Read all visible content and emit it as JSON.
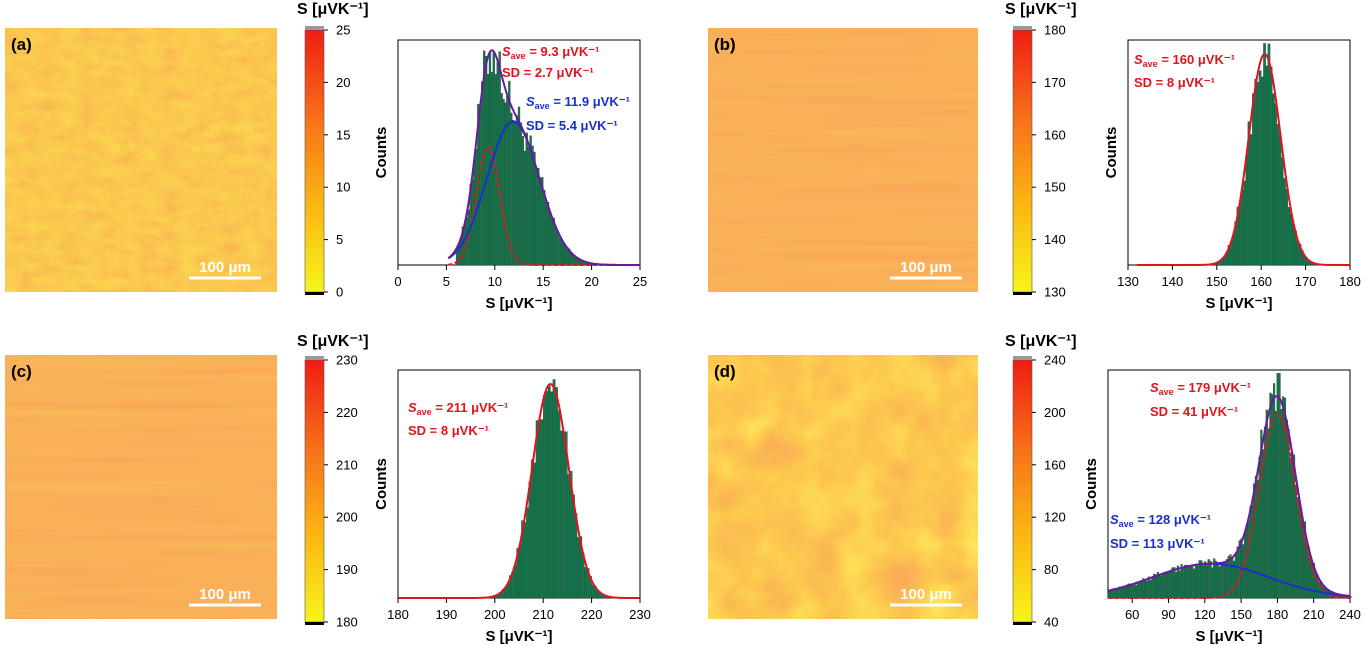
{
  "colors": {
    "red": "#e0141e",
    "blue": "#1b2fd1",
    "purple": "#6a1b9a",
    "bar": "#0f7a4c",
    "bar_edge": "#3a3a3a"
  },
  "chart_data": [
    {
      "type": "bar",
      "panel_label": "(a)",
      "colorbar": {
        "title": "S [μVK⁻¹]",
        "ticks": [
          "0",
          "5",
          "10",
          "15",
          "20",
          "25"
        ],
        "range": [
          0,
          25
        ]
      },
      "map": {
        "scale_bar": "100 μm",
        "style": "granular"
      },
      "histogram": {
        "xlim": [
          0,
          25
        ],
        "xticks": [
          "0",
          "5",
          "10",
          "15",
          "20",
          "25"
        ],
        "xlabel": "S [μVK⁻¹]",
        "ylabel": "Counts",
        "bins_from": 6,
        "bin_width": 0.2,
        "fits": [
          {
            "name": "fit1",
            "color": "red",
            "mean": 9.3,
            "sd": 2.7,
            "fit_mean": 9.3,
            "fit_sd": 1.2,
            "amp": 0.56,
            "dashed": true
          },
          {
            "name": "fit2",
            "color": "blue",
            "mean": 11.9,
            "sd": 5.4,
            "fit_mean": 11.9,
            "fit_sd": 2.7,
            "amp": 0.68,
            "dashed": false
          }
        ],
        "envelope": true,
        "annotations": [
          {
            "color": "red",
            "sym": "S",
            "sub": "ave",
            "text": " = 9.3 μVK⁻¹"
          },
          {
            "color": "red",
            "sym": "",
            "sub": "",
            "text": "SD = 2.7 μVK⁻¹"
          },
          {
            "color": "blue",
            "sym": "S",
            "sub": "ave",
            "text": " = 11.9 μVK⁻¹"
          },
          {
            "color": "blue",
            "sym": "",
            "sub": "",
            "text": "SD = 5.4 μVK⁻¹"
          }
        ]
      }
    },
    {
      "type": "bar",
      "panel_label": "(b)",
      "colorbar": {
        "title": "S [μVK⁻¹]",
        "ticks": [
          "130",
          "140",
          "150",
          "160",
          "170",
          "180"
        ],
        "range": [
          130,
          180
        ]
      },
      "map": {
        "scale_bar": "100 μm",
        "style": "streaky"
      },
      "histogram": {
        "xlim": [
          130,
          180
        ],
        "xticks": [
          "130",
          "140",
          "150",
          "160",
          "170",
          "180"
        ],
        "xlabel": "S [μVK⁻¹]",
        "ylabel": "Counts",
        "bins_from": 134,
        "bin_width": 0.5,
        "fits": [
          {
            "name": "fit1",
            "color": "red",
            "mean": 160,
            "sd": 8,
            "fit_mean": 160.8,
            "fit_sd": 3.6,
            "amp": 1.0,
            "dashed": false
          }
        ],
        "envelope": false,
        "annotations": [
          {
            "color": "red",
            "sym": "S",
            "sub": "ave",
            "text": " = 160 μVK⁻¹"
          },
          {
            "color": "red",
            "sym": "",
            "sub": "",
            "text": "SD = 8 μVK⁻¹"
          }
        ]
      }
    },
    {
      "type": "bar",
      "panel_label": "(c)",
      "colorbar": {
        "title": "S [μVK⁻¹]",
        "ticks": [
          "180",
          "190",
          "200",
          "210",
          "220",
          "230"
        ],
        "range": [
          180,
          230
        ]
      },
      "map": {
        "scale_bar": "100 μm",
        "style": "streaky"
      },
      "histogram": {
        "xlim": [
          180,
          230
        ],
        "xticks": [
          "180",
          "190",
          "200",
          "210",
          "220",
          "230"
        ],
        "xlabel": "S [μVK⁻¹]",
        "ylabel": "Counts",
        "bins_from": 180,
        "bin_width": 0.5,
        "fits": [
          {
            "name": "fit1",
            "color": "red",
            "mean": 211,
            "sd": 8,
            "fit_mean": 211.5,
            "fit_sd": 3.8,
            "amp": 1.0,
            "dashed": false
          }
        ],
        "envelope": false,
        "annotations": [
          {
            "color": "red",
            "sym": "S",
            "sub": "ave",
            "text": " = 211 μVK⁻¹"
          },
          {
            "color": "red",
            "sym": "",
            "sub": "",
            "text": "SD = 8 μVK⁻¹"
          }
        ]
      }
    },
    {
      "type": "bar",
      "panel_label": "(d)",
      "colorbar": {
        "title": "S [μVK⁻¹]",
        "ticks": [
          "40",
          "80",
          "120",
          "160",
          "200",
          "240"
        ],
        "range": [
          40,
          240
        ]
      },
      "map": {
        "scale_bar": "100 μm",
        "style": "blotchy"
      },
      "histogram": {
        "xlim": [
          40,
          240
        ],
        "xticks": [
          "60",
          "90",
          "120",
          "150",
          "180",
          "210",
          "240"
        ],
        "xlabel": "S [μVK⁻¹]",
        "ylabel": "Counts",
        "bins_from": 40,
        "bin_width": 1.5,
        "fits": [
          {
            "name": "fit1",
            "color": "red",
            "mean": 179,
            "sd": 41,
            "fit_mean": 180,
            "fit_sd": 15,
            "amp": 0.86,
            "dashed": true
          },
          {
            "name": "fit2",
            "color": "blue",
            "mean": 128,
            "sd": 113,
            "fit_mean": 125,
            "fit_sd": 48,
            "amp": 0.16,
            "dashed": false
          }
        ],
        "envelope": true,
        "annotations": [
          {
            "color": "red",
            "sym": "S",
            "sub": "ave",
            "text": " = 179 μVK⁻¹"
          },
          {
            "color": "red",
            "sym": "",
            "sub": "",
            "text": "SD = 41 μVK⁻¹"
          },
          {
            "color": "blue",
            "sym": "S",
            "sub": "ave",
            "text": " = 128 μVK⁻¹"
          },
          {
            "color": "blue",
            "sym": "",
            "sub": "",
            "text": "SD = 113 μVK⁻¹"
          }
        ]
      }
    }
  ]
}
